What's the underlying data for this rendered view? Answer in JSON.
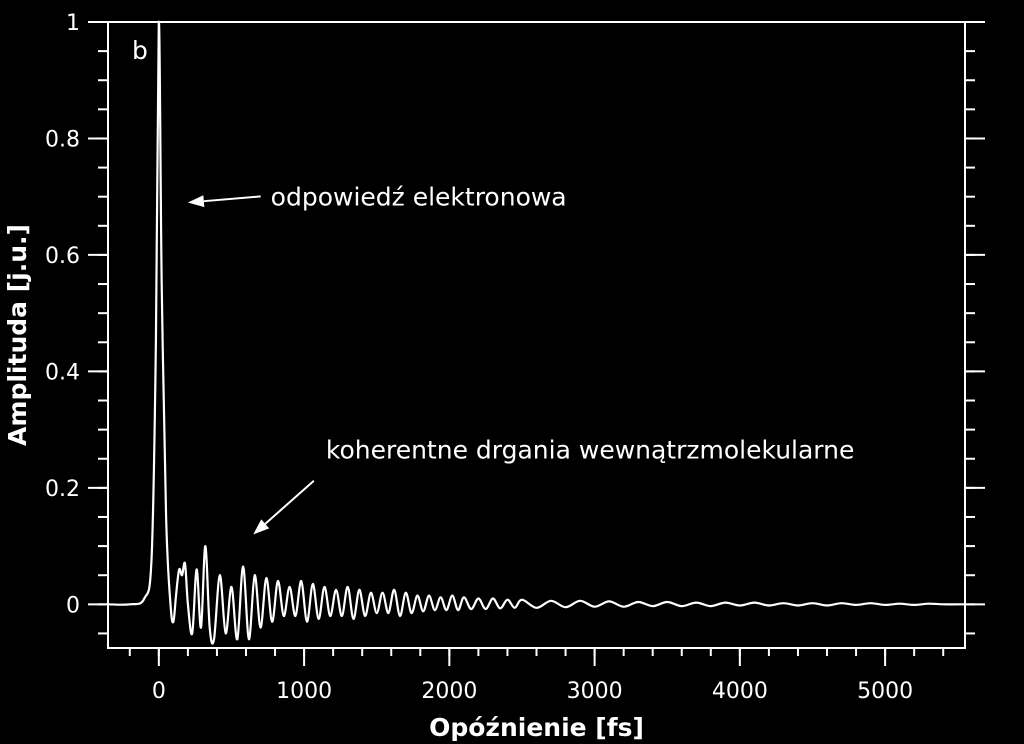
{
  "chart_data": {
    "type": "line",
    "xlabel": "Opóźnienie [fs]",
    "ylabel": "Amplituda [j.u.]",
    "panel_label": "b",
    "xlim": [
      -350,
      5550
    ],
    "ylim": [
      -0.075,
      1.0
    ],
    "x_ticks": [
      0,
      1000,
      2000,
      3000,
      4000,
      5000
    ],
    "x_tick_labels": [
      "0",
      "1000",
      "2000",
      "3000",
      "4000",
      "5000"
    ],
    "x_minor_step": 200,
    "y_ticks": [
      0,
      0.2,
      0.4,
      0.6,
      0.8,
      1
    ],
    "y_tick_labels": [
      "0",
      "0.2",
      "0.4",
      "0.6",
      "0.8",
      "1"
    ],
    "y_minor_step": 0.05,
    "grid": false,
    "annotations": [
      {
        "text": "odpowiedź elektronowa",
        "x": 770,
        "y": 0.685,
        "arrow_to": [
          200,
          0.69
        ]
      },
      {
        "text": "koherentne drgania wewnątrzmolekularne",
        "x": 1150,
        "y": 0.25,
        "arrow_to": [
          650,
          0.12
        ]
      }
    ],
    "series": [
      {
        "line_color": "#ffffff",
        "x": [
          -350,
          -200,
          -100,
          -50,
          -20,
          0,
          20,
          50,
          80,
          100,
          120,
          140,
          160,
          180,
          200,
          230,
          260,
          290,
          320,
          350,
          380,
          420,
          460,
          500,
          540,
          580,
          620,
          660,
          700,
          740,
          780,
          820,
          860,
          900,
          940,
          980,
          1020,
          1060,
          1100,
          1140,
          1180,
          1220,
          1260,
          1300,
          1340,
          1380,
          1420,
          1460,
          1500,
          1540,
          1580,
          1620,
          1660,
          1700,
          1740,
          1780,
          1820,
          1860,
          1900,
          1940,
          1980,
          2020,
          2060,
          2100,
          2150,
          2200,
          2250,
          2300,
          2350,
          2400,
          2450,
          2500,
          2600,
          2700,
          2800,
          2900,
          3000,
          3100,
          3200,
          3300,
          3400,
          3500,
          3600,
          3700,
          3800,
          3900,
          4000,
          4100,
          4200,
          4300,
          4400,
          4500,
          4600,
          4700,
          4800,
          4900,
          5000,
          5100,
          5200,
          5300,
          5400,
          5550
        ],
        "y": [
          0,
          0,
          0.01,
          0.08,
          0.45,
          1.0,
          0.55,
          0.15,
          0.0,
          -0.03,
          0.02,
          0.06,
          0.05,
          0.07,
          0.0,
          -0.05,
          0.06,
          -0.04,
          0.1,
          -0.04,
          -0.06,
          0.05,
          -0.05,
          0.03,
          -0.06,
          0.065,
          -0.06,
          0.05,
          -0.04,
          0.045,
          -0.03,
          0.04,
          -0.02,
          0.03,
          -0.02,
          0.04,
          -0.03,
          0.035,
          -0.025,
          0.03,
          -0.02,
          0.025,
          -0.02,
          0.03,
          -0.025,
          0.025,
          -0.02,
          0.02,
          -0.015,
          0.02,
          -0.015,
          0.025,
          -0.02,
          0.02,
          -0.015,
          0.015,
          -0.012,
          0.015,
          -0.01,
          0.012,
          -0.01,
          0.015,
          -0.01,
          0.012,
          -0.008,
          0.01,
          -0.008,
          0.01,
          -0.007,
          0.008,
          -0.006,
          0.008,
          -0.006,
          0.006,
          -0.005,
          0.006,
          -0.004,
          0.005,
          -0.004,
          0.004,
          -0.003,
          0.004,
          -0.003,
          0.003,
          -0.003,
          0.003,
          -0.002,
          0.003,
          -0.002,
          0.002,
          -0.002,
          0.002,
          -0.002,
          0.002,
          -0.001,
          0.002,
          -0.001,
          0.001,
          -0.001,
          0.001,
          0,
          0
        ]
      }
    ]
  }
}
